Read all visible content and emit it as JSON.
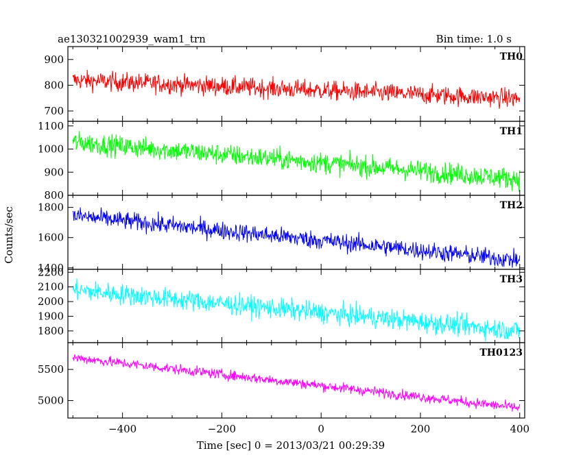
{
  "chart_data": {
    "type": "line",
    "title_left": "ae130321002939_wam1_trn",
    "title_right": "Bin time: 1.0 s",
    "xlabel": "Time [sec] 0 = 2013/03/21 00:29:39",
    "ylabel": "Counts/sec",
    "xlim": [
      -510,
      410
    ],
    "x_ticks": [
      -400,
      -200,
      0,
      200,
      400
    ],
    "grid": false,
    "panels": [
      {
        "name": "TH0",
        "color": "#ff0000",
        "ylim": [
          660,
          950
        ],
        "y_ticks": [
          700,
          800,
          900
        ],
        "trend_start": 820,
        "trend_end": 748,
        "noise": 34
      },
      {
        "name": "TH1",
        "color": "#00ff00",
        "ylim": [
          800,
          1120
        ],
        "y_ticks": [
          800,
          900,
          1000,
          1100
        ],
        "trend_start": 1030,
        "trend_end": 870,
        "noise": 42
      },
      {
        "name": "TH2",
        "color": "#0000ff",
        "ylim": [
          1390,
          1880
        ],
        "y_ticks": [
          1400,
          1600,
          1800
        ],
        "trend_start": 1745,
        "trend_end": 1450,
        "noise": 55
      },
      {
        "name": "TH3",
        "color": "#00ffff",
        "ylim": [
          1720,
          2220
        ],
        "y_ticks": [
          1800,
          1900,
          2000,
          2100,
          2200
        ],
        "trend_start": 2080,
        "trend_end": 1800,
        "noise": 65
      },
      {
        "name": "TH0123",
        "color": "#ff00ff",
        "ylim": [
          4720,
          5930
        ],
        "y_ticks": [
          5000,
          5500
        ],
        "trend_start": 5690,
        "trend_end": 4880,
        "noise": 75
      }
    ]
  }
}
